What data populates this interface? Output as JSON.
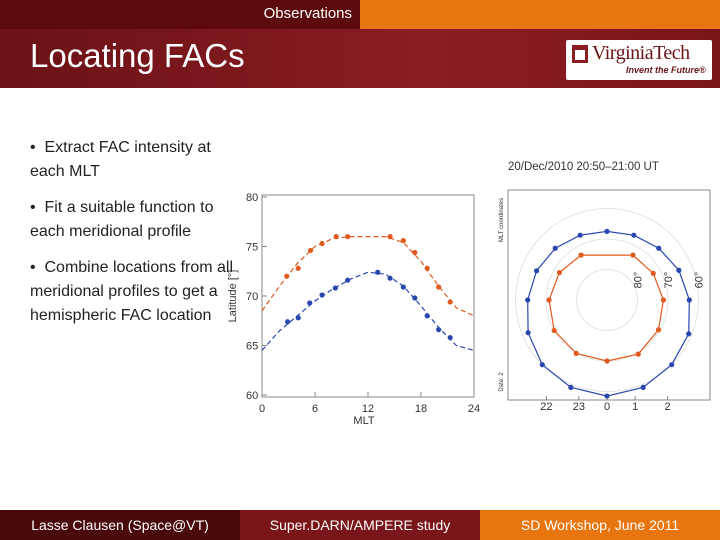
{
  "header": {
    "section": "Observations",
    "title": "Locating FACs",
    "logo": "VirginiaTech",
    "logo_tagline": "Invent the Future®"
  },
  "bullets": [
    "Extract FAC intensity at each MLT",
    "Fit a suitable function to each meridional profile",
    "Combine locations from all meridional profiles to get a hemispheric FAC location"
  ],
  "latitude_chart": {
    "type": "scatter",
    "xlabel": "MLT",
    "ylabel": "Latitude [°]",
    "xlim": [
      0,
      24
    ],
    "ylim": [
      60,
      80
    ],
    "xticks": [
      0,
      6,
      12,
      18,
      24
    ],
    "yticks": [
      60,
      65,
      70,
      75,
      80
    ],
    "series": [
      {
        "color": "#e05a1e",
        "x": [
          2.8,
          4.1,
          5.5,
          6.8,
          8.4,
          9.7,
          14.5,
          16,
          17.3,
          18.7,
          20,
          21.3
        ],
        "values": [
          72.0,
          72.8,
          74.6,
          75.3,
          76.0,
          76.0,
          76.0,
          75.6,
          74.4,
          72.8,
          70.9,
          69.4
        ]
      },
      {
        "color": "#2a47b0",
        "x": [
          2.9,
          4.1,
          5.4,
          6.8,
          8.3,
          9.7,
          13.1,
          14.5,
          16,
          17.3,
          18.7,
          20,
          21.3
        ],
        "values": [
          67.4,
          67.8,
          69.3,
          70.1,
          70.8,
          71.6,
          72.4,
          71.8,
          70.9,
          69.8,
          68.0,
          66.6,
          65.8
        ]
      }
    ],
    "fits": [
      {
        "color": "#e05a1e",
        "x": [
          0,
          2,
          4,
          6,
          8,
          10,
          12,
          14,
          16,
          18,
          20,
          22,
          24
        ],
        "values": [
          68.5,
          71,
          73.3,
          75,
          75.8,
          76,
          76,
          76,
          75.4,
          73.5,
          71,
          68.8,
          68
        ]
      },
      {
        "color": "#2a47b0",
        "x": [
          0,
          2,
          4,
          6,
          8,
          10,
          12,
          14,
          16,
          18,
          20,
          22,
          24
        ],
        "values": [
          64.5,
          66.5,
          68,
          69.5,
          70.7,
          71.7,
          72.4,
          72.2,
          71,
          69,
          66.8,
          65,
          64.5
        ]
      }
    ]
  },
  "polar_chart": {
    "type": "polar",
    "title": "20/Dec/2010 20:50–21:00 UT",
    "side_label": "MLT coordinates",
    "side_label_2": "Date: 2",
    "lat_rings": [
      {
        "value": 80,
        "label": "80°"
      },
      {
        "value": 70,
        "label": "70°"
      },
      {
        "value": 60,
        "label": "60°"
      }
    ],
    "mlt_ticks": [
      22,
      23,
      0,
      1,
      2
    ],
    "series": [
      {
        "color": "#e05a1e",
        "mlt": [
          0,
          2,
          4,
          6,
          8,
          10,
          14,
          16,
          18,
          20,
          22
        ],
        "values": [
          70,
          69.5,
          70.5,
          71.5,
          72.5,
          73,
          73,
          72,
          71,
          70,
          69.8
        ]
      },
      {
        "color": "#2a47b0",
        "mlt": [
          0,
          1.5,
          3,
          4.5,
          6,
          7.5,
          9,
          10.5,
          12,
          13.5,
          15,
          16.5,
          18,
          19.5,
          21,
          22.5
        ],
        "values": [
          58.5,
          59,
          60,
          61,
          63,
          64.5,
          66,
          67,
          67.5,
          67,
          66,
          65,
          64,
          62,
          60,
          59
        ]
      }
    ]
  },
  "footer": {
    "author": "Lasse Clausen (Space@VT)",
    "study": "Super.DARN/AMPERE study",
    "event": "SD Workshop, June 2011"
  }
}
